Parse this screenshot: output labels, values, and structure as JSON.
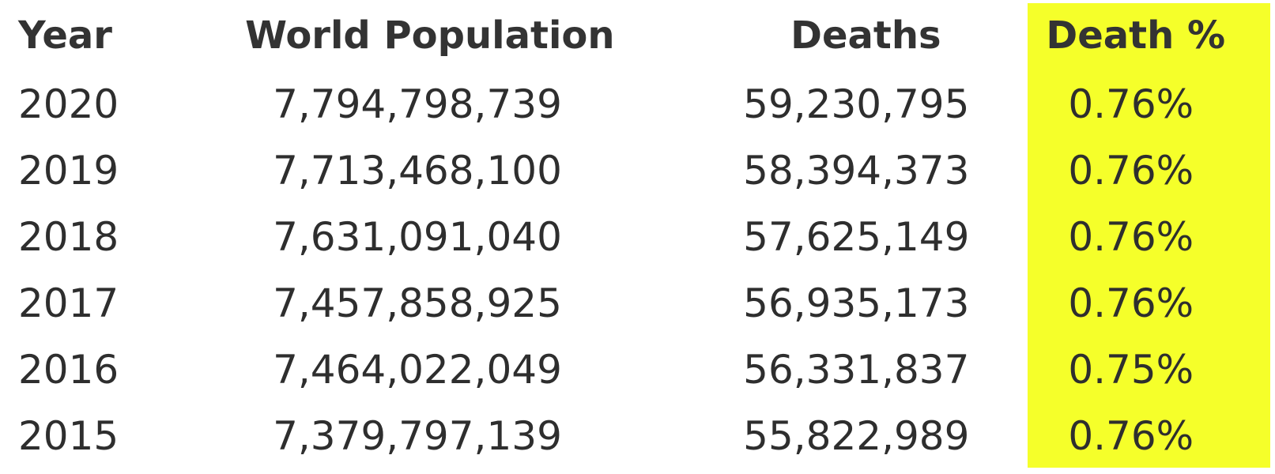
{
  "table": {
    "headers": {
      "year": "Year",
      "population": "World Population",
      "deaths": "Deaths",
      "death_pct": "Death %"
    },
    "highlight_color": "#f5ff2a",
    "rows": [
      {
        "year": "2020",
        "population": "7,794,798,739",
        "deaths": "59,230,795",
        "death_pct": "0.76%"
      },
      {
        "year": "2019",
        "population": "7,713,468,100",
        "deaths": "58,394,373",
        "death_pct": "0.76%"
      },
      {
        "year": "2018",
        "population": "7,631,091,040",
        "deaths": "57,625,149",
        "death_pct": "0.76%"
      },
      {
        "year": "2017",
        "population": "7,457,858,925",
        "deaths": "56,935,173",
        "death_pct": "0.76%"
      },
      {
        "year": "2016",
        "population": "7,464,022,049",
        "deaths": "56,331,837",
        "death_pct": "0.75%"
      },
      {
        "year": "2015",
        "population": "7,379,797,139",
        "deaths": "55,822,989",
        "death_pct": "0.76%"
      }
    ]
  }
}
